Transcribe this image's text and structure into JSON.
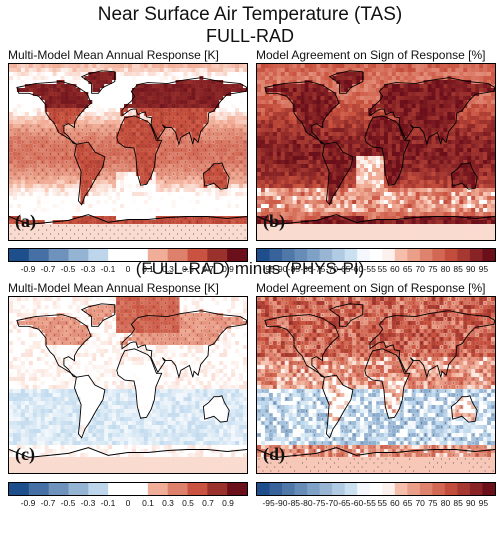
{
  "figure": {
    "title": "Near Surface Air Temperature (TAS)",
    "section1_title": "FULL-RAD",
    "section2_title": "(FULL-RAD) minus (PHYS-PI)"
  },
  "panels": [
    {
      "id": "a",
      "letter": "(a)",
      "label": "Multi-Model Mean Annual Response [K]",
      "field": "mean_full"
    },
    {
      "id": "b",
      "letter": "(b)",
      "label": "Model Agreement on Sign of Response [%]",
      "field": "agree_full"
    },
    {
      "id": "c",
      "letter": "(c)",
      "label": "Multi-Model Mean Annual Response [K]",
      "field": "mean_diff"
    },
    {
      "id": "d",
      "letter": "(d)",
      "label": "Model Agreement on Sign of Response [%]",
      "field": "agree_diff"
    }
  ],
  "colorbars": {
    "response": {
      "ticks": [
        "-0.9",
        "-0.7",
        "-0.5",
        "-0.3",
        "-0.1",
        "0",
        "0.1",
        "0.3",
        "0.5",
        "0.7",
        "0.9"
      ]
    },
    "agreement": {
      "ticks": [
        "-95",
        "-90",
        "-85",
        "-80",
        "-75",
        "-70",
        "-65",
        "-60",
        "-55",
        "55",
        "60",
        "65",
        "70",
        "75",
        "80",
        "85",
        "90",
        "95"
      ]
    }
  },
  "colors": {
    "deep_blue": "#1f4e8c",
    "light_blue": "#c4dcef",
    "white": "#ffffff",
    "light_red": "#f4b6a0",
    "red": "#c9523f",
    "deep_red": "#6b0f1a"
  }
}
